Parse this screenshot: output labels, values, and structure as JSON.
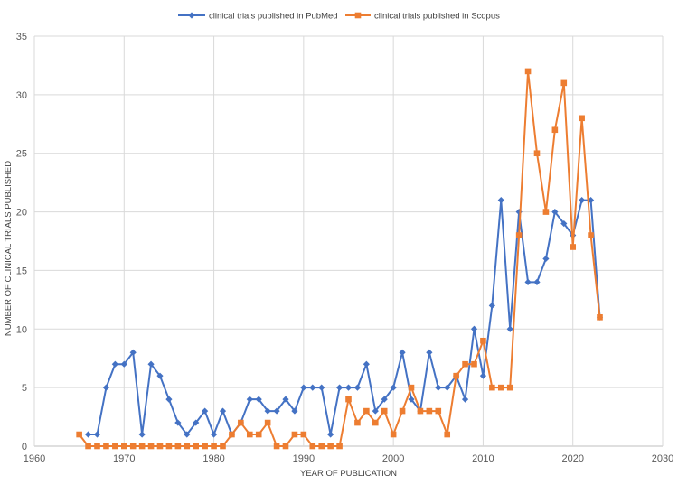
{
  "chart_data": {
    "type": "scatter",
    "xlabel": "YEAR OF PUBLICATION",
    "ylabel": "NUMBER OF CLINICAL TRIALS PUBLISHED",
    "xlim": [
      1960,
      2030
    ],
    "ylim": [
      0,
      35
    ],
    "x_ticks": [
      1960,
      1970,
      1980,
      1990,
      2000,
      2010,
      2020,
      2030
    ],
    "y_ticks": [
      0,
      5,
      10,
      15,
      20,
      25,
      30,
      35
    ],
    "grid": true,
    "legend_position": "top-center",
    "series": [
      {
        "name": "clinical trials published in PubMed",
        "color": "#4472C4",
        "marker": "diamond",
        "x": [
          1966,
          1967,
          1968,
          1969,
          1970,
          1971,
          1972,
          1973,
          1974,
          1975,
          1976,
          1977,
          1978,
          1979,
          1980,
          1981,
          1982,
          1983,
          1984,
          1985,
          1986,
          1987,
          1988,
          1989,
          1990,
          1991,
          1992,
          1993,
          1994,
          1995,
          1996,
          1997,
          1998,
          1999,
          2000,
          2001,
          2002,
          2003,
          2004,
          2005,
          2006,
          2007,
          2008,
          2009,
          2010,
          2011,
          2012,
          2013,
          2014,
          2015,
          2016,
          2017,
          2018,
          2019,
          2020,
          2021,
          2022,
          2023
        ],
        "y": [
          1,
          1,
          5,
          7,
          7,
          8,
          1,
          7,
          6,
          4,
          2,
          1,
          2,
          3,
          1,
          3,
          1,
          2,
          4,
          4,
          3,
          3,
          4,
          3,
          5,
          5,
          5,
          1,
          5,
          5,
          5,
          7,
          3,
          4,
          5,
          8,
          4,
          3,
          8,
          5,
          5,
          6,
          4,
          10,
          6,
          12,
          21,
          10,
          20,
          14,
          14,
          16,
          20,
          19,
          18,
          21,
          21,
          11
        ]
      },
      {
        "name": "clinical trials published in Scopus",
        "color": "#ED7D31",
        "marker": "square",
        "x": [
          1965,
          1966,
          1967,
          1968,
          1969,
          1970,
          1971,
          1972,
          1973,
          1974,
          1975,
          1976,
          1977,
          1978,
          1979,
          1980,
          1981,
          1982,
          1983,
          1984,
          1985,
          1986,
          1987,
          1988,
          1989,
          1990,
          1991,
          1992,
          1993,
          1994,
          1995,
          1996,
          1997,
          1998,
          1999,
          2000,
          2001,
          2002,
          2003,
          2004,
          2005,
          2006,
          2007,
          2008,
          2009,
          2010,
          2011,
          2012,
          2013,
          2014,
          2015,
          2016,
          2017,
          2018,
          2019,
          2020,
          2021,
          2022,
          2023
        ],
        "y": [
          1,
          0,
          0,
          0,
          0,
          0,
          0,
          0,
          0,
          0,
          0,
          0,
          0,
          0,
          0,
          0,
          0,
          1,
          2,
          1,
          1,
          2,
          0,
          0,
          1,
          1,
          0,
          0,
          0,
          0,
          4,
          2,
          3,
          2,
          3,
          1,
          3,
          5,
          3,
          3,
          3,
          1,
          6,
          7,
          7,
          9,
          5,
          5,
          5,
          18,
          32,
          25,
          20,
          27,
          31,
          17,
          28,
          18,
          11
        ]
      }
    ]
  }
}
